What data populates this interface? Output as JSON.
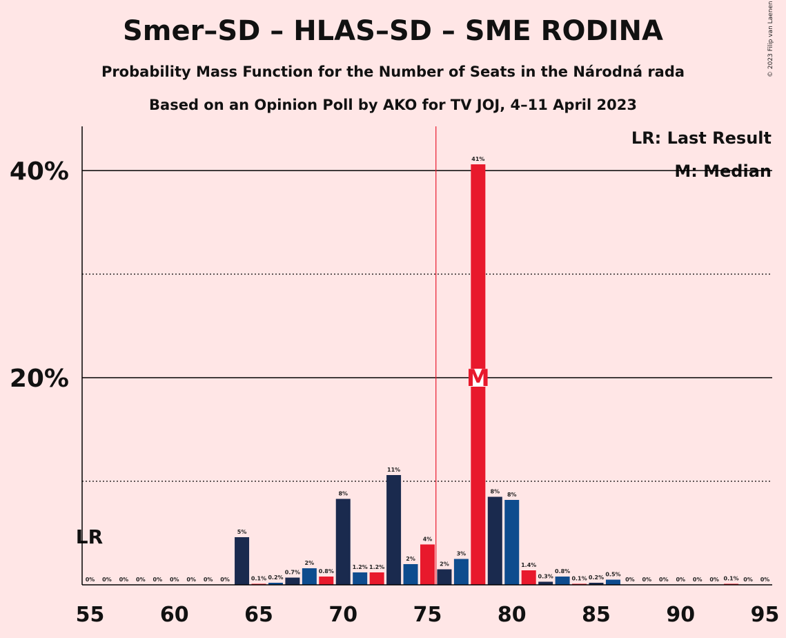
{
  "title": "Smer–SD – HLAS–SD – SME RODINA",
  "subtitle": "Probability Mass Function for the Number of Seats in the Národná rada",
  "subtitle2": "Based on an Opinion Poll by AKO for TV JOJ, 4–11 April 2023",
  "copyright": "© 2023 Filip van Laenen",
  "legend": {
    "lr": "LR: Last Result",
    "m": "M: Median"
  },
  "colors": {
    "background": "#FFE6E6",
    "navy": "#1A2A4E",
    "red": "#E8192C",
    "blue": "#0E4C8E"
  },
  "chart_data": {
    "type": "bar",
    "x": [
      55,
      56,
      57,
      58,
      59,
      60,
      61,
      62,
      63,
      64,
      65,
      66,
      67,
      68,
      69,
      70,
      71,
      72,
      73,
      74,
      75,
      76,
      77,
      78,
      79,
      80,
      81,
      82,
      83,
      84,
      85,
      86,
      87,
      88,
      89,
      90,
      91,
      92,
      93,
      94,
      95
    ],
    "values": [
      0,
      0,
      0,
      0,
      0,
      0,
      0,
      0,
      0,
      4.6,
      0.1,
      0.2,
      0.7,
      1.6,
      0.8,
      8.3,
      1.2,
      1.2,
      10.6,
      2.0,
      3.9,
      1.5,
      2.5,
      40.6,
      8.5,
      8.2,
      1.4,
      0.3,
      0.8,
      0.1,
      0.2,
      0.5,
      0,
      0,
      0,
      0,
      0,
      0,
      0.1,
      0,
      0
    ],
    "labels": [
      "0%",
      "0%",
      "0%",
      "0%",
      "0%",
      "0%",
      "0%",
      "0%",
      "0%",
      "5%",
      "0.1%",
      "0.2%",
      "0.7%",
      "2%",
      "0.8%",
      "8%",
      "1.2%",
      "1.2%",
      "11%",
      "2%",
      "4%",
      "2%",
      "3%",
      "41%",
      "8%",
      "8%",
      "1.4%",
      "0.3%",
      "0.8%",
      "0.1%",
      "0.2%",
      "0.5%",
      "0%",
      "0%",
      "0%",
      "0%",
      "0%",
      "0%",
      "0.1%",
      "0%",
      "0%"
    ],
    "colors": [
      "navy",
      "red",
      "blue",
      "navy",
      "red",
      "blue",
      "navy",
      "red",
      "blue",
      "navy",
      "red",
      "blue",
      "navy",
      "blue",
      "red",
      "navy",
      "blue",
      "red",
      "navy",
      "blue",
      "red",
      "navy",
      "blue",
      "red",
      "navy",
      "blue",
      "red",
      "navy",
      "blue",
      "red",
      "navy",
      "blue",
      "red",
      "navy",
      "blue",
      "red",
      "navy",
      "blue",
      "red",
      "navy",
      "blue"
    ],
    "ylim": [
      0,
      44
    ],
    "ytick_values": [
      20,
      40
    ],
    "ytick_labels": [
      "20%",
      "40%"
    ],
    "dotted_grid": [
      10,
      30
    ],
    "xtick_values": [
      55,
      60,
      65,
      70,
      75,
      80,
      85,
      90,
      95
    ],
    "xtick_labels": [
      "55",
      "60",
      "65",
      "70",
      "75",
      "80",
      "85",
      "90",
      "95"
    ],
    "majority_line": 75.5,
    "last_result": 55,
    "last_result_label": "LR",
    "median": 78,
    "median_label": "M"
  }
}
